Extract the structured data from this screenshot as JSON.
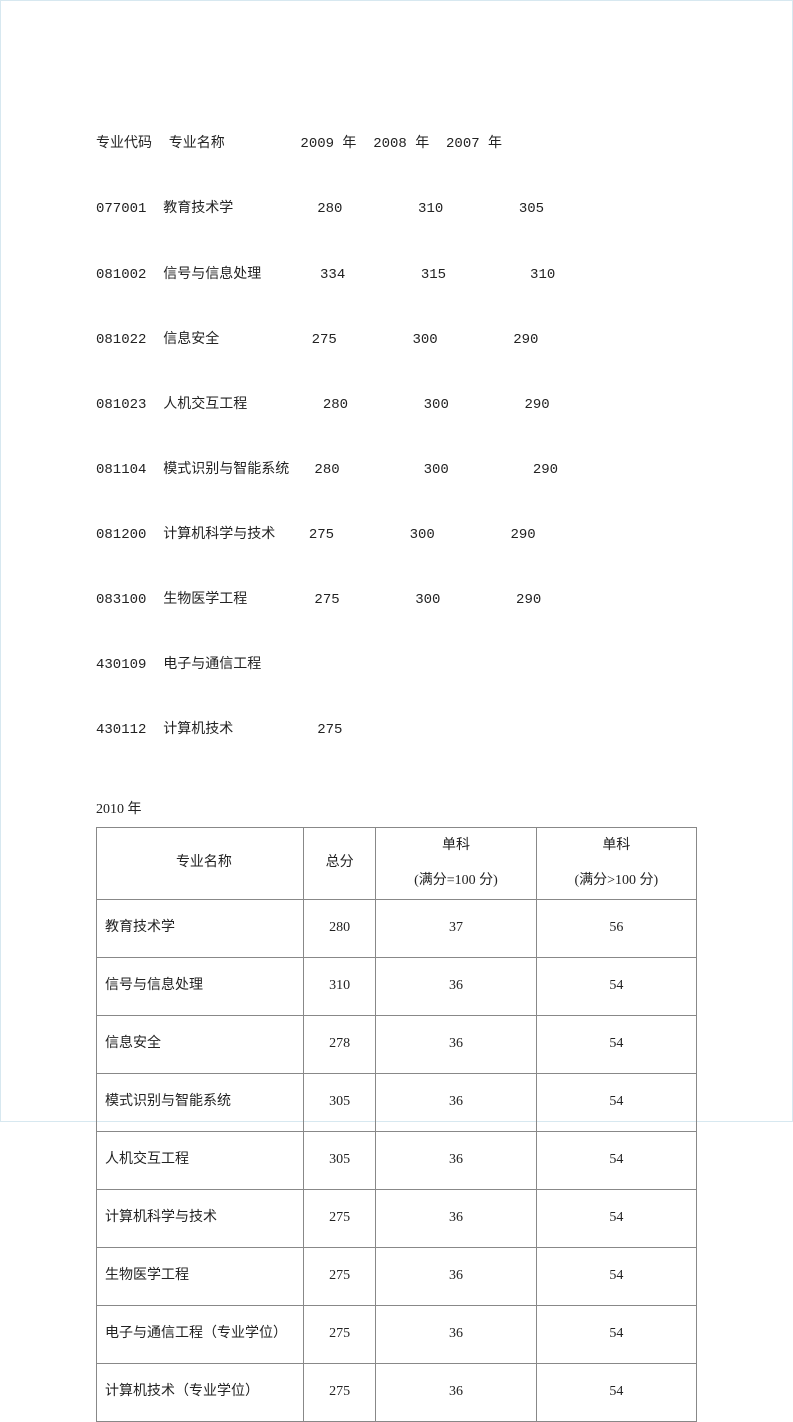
{
  "top_section": {
    "header_line": "专业代码  专业名称         2009 年  2008 年  2007 年",
    "rows": [
      "077001  教育技术学          280         310         305",
      "081002  信号与信息处理       334         315          310",
      "081022  信息安全           275         300         290",
      "081023  人机交互工程         280         300         290",
      "081104  模式识别与智能系统   280          300          290",
      "081200  计算机科学与技术    275         300         290",
      "083100  生物医学工程        275         300         290",
      "430109  电子与通信工程",
      "430112  计算机技术          275"
    ]
  },
  "year_label": "2010 年",
  "table": {
    "headers": {
      "name": "专业名称",
      "total": "总分",
      "sub1_top": "单科",
      "sub1_bottom": "(满分=100 分)",
      "sub2_top": "单科",
      "sub2_bottom": "(满分>100 分)"
    },
    "rows": [
      {
        "name": "教育技术学",
        "total": "280",
        "s1": "37",
        "s2": "56"
      },
      {
        "name": "信号与信息处理",
        "total": "310",
        "s1": "36",
        "s2": "54"
      },
      {
        "name": "信息安全",
        "total": "278",
        "s1": "36",
        "s2": "54"
      },
      {
        "name": "模式识别与智能系统",
        "total": "305",
        "s1": "36",
        "s2": "54"
      },
      {
        "name": "人机交互工程",
        "total": "305",
        "s1": "36",
        "s2": "54"
      },
      {
        "name": "计算机科学与技术",
        "total": "275",
        "s1": "36",
        "s2": "54"
      },
      {
        "name": "生物医学工程",
        "total": "275",
        "s1": "36",
        "s2": "54"
      },
      {
        "name": "电子与通信工程（专业学位）",
        "total": "275",
        "s1": "36",
        "s2": "54"
      },
      {
        "name": "计算机技术（专业学位）",
        "total": "275",
        "s1": "36",
        "s2": "54"
      }
    ]
  }
}
